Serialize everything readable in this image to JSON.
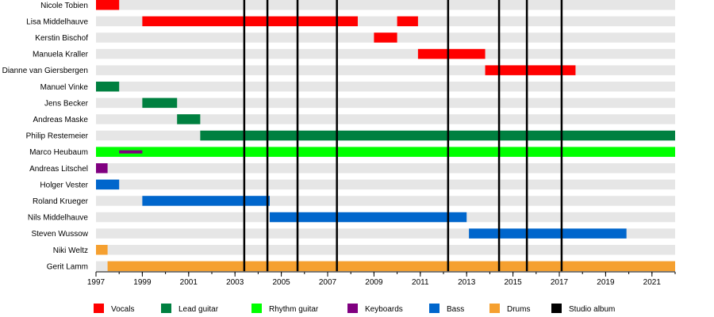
{
  "chart_data": {
    "type": "timeline",
    "members": [
      "Nicole Tobien",
      "Lisa Middelhauve",
      "Kerstin Bischof",
      "Manuela Kraller",
      "Dianne van Giersbergen",
      "Manuel Vinke",
      "Jens Becker",
      "Andreas Maske",
      "Philip Restemeier",
      "Marco Heubaum",
      "Andreas Litschel",
      "Holger Vester",
      "Roland Krueger",
      "Nils Middelhauve",
      "Steven Wussow",
      "Niki Weltz",
      "Gerit Lamm"
    ],
    "roles": [
      {
        "key": "vocals",
        "label": "Vocals",
        "color": "#ff0000"
      },
      {
        "key": "lead_guitar",
        "label": "Lead guitar",
        "color": "#008040"
      },
      {
        "key": "rhythm_guitar",
        "label": "Rhythm guitar",
        "color": "#00ff00"
      },
      {
        "key": "keyboards",
        "label": "Keyboards",
        "color": "#800080"
      },
      {
        "key": "bass",
        "label": "Bass",
        "color": "#0066cc"
      },
      {
        "key": "drums",
        "label": "Drums",
        "color": "#f5a030"
      },
      {
        "key": "studio_album",
        "label": "Studio album",
        "color": "#000000"
      }
    ],
    "bars": [
      {
        "member": 0,
        "role": "vocals",
        "start": 1997.0,
        "end": 1998.0
      },
      {
        "member": 1,
        "role": "vocals",
        "start": 1999.0,
        "end": 2008.3
      },
      {
        "member": 1,
        "role": "vocals",
        "start": 2010.0,
        "end": 2010.9
      },
      {
        "member": 2,
        "role": "vocals",
        "start": 2009.0,
        "end": 2010.0
      },
      {
        "member": 3,
        "role": "vocals",
        "start": 2010.9,
        "end": 2013.8
      },
      {
        "member": 4,
        "role": "vocals",
        "start": 2013.8,
        "end": 2017.7
      },
      {
        "member": 5,
        "role": "lead_guitar",
        "start": 1997.0,
        "end": 1998.0
      },
      {
        "member": 6,
        "role": "lead_guitar",
        "start": 1999.0,
        "end": 2000.5
      },
      {
        "member": 7,
        "role": "lead_guitar",
        "start": 2000.5,
        "end": 2001.5
      },
      {
        "member": 8,
        "role": "lead_guitar",
        "start": 2001.5,
        "end": 2022.0
      },
      {
        "member": 9,
        "role": "rhythm_guitar",
        "start": 1997.0,
        "end": 2022.0
      },
      {
        "member": 9,
        "role": "keyboards",
        "start": 1998.0,
        "end": 1999.0,
        "thin": true
      },
      {
        "member": 10,
        "role": "keyboards",
        "start": 1997.0,
        "end": 1997.5
      },
      {
        "member": 11,
        "role": "bass",
        "start": 1997.0,
        "end": 1998.0
      },
      {
        "member": 12,
        "role": "bass",
        "start": 1999.0,
        "end": 2004.5
      },
      {
        "member": 13,
        "role": "bass",
        "start": 2004.5,
        "end": 2013.0
      },
      {
        "member": 14,
        "role": "bass",
        "start": 2013.1,
        "end": 2019.9
      },
      {
        "member": 15,
        "role": "drums",
        "start": 1997.0,
        "end": 1997.5
      },
      {
        "member": 16,
        "role": "drums",
        "start": 1997.5,
        "end": 2022.0
      }
    ],
    "studio_albums": [
      2003.4,
      2004.4,
      2005.7,
      2007.4,
      2012.2,
      2014.4,
      2015.6,
      2017.1
    ],
    "x_ticks": [
      "1997",
      "1999",
      "2001",
      "2003",
      "2005",
      "2007",
      "2009",
      "2011",
      "2013",
      "2015",
      "2017",
      "2019",
      "2021"
    ],
    "xlim": [
      1997,
      2022
    ],
    "legend_position": "bottom"
  }
}
